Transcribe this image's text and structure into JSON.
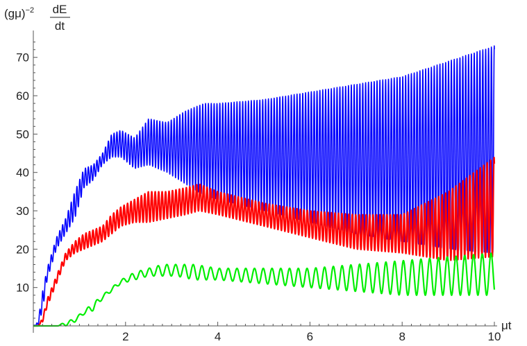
{
  "chart_data": {
    "type": "line",
    "xlabel": "μt",
    "ylabel": {
      "prefix": "(gμ)",
      "exponent": "−2",
      "numerator": "dE",
      "denominator": "dt"
    },
    "xlim": [
      0,
      10
    ],
    "ylim": [
      -2,
      75
    ],
    "x_ticks": [
      2,
      4,
      6,
      8,
      10
    ],
    "y_ticks": [
      10,
      20,
      30,
      40,
      50,
      60,
      70
    ],
    "grid": false,
    "legend": "none",
    "series": [
      {
        "color": "#0000ff",
        "osc_period": 0.062,
        "x": [
          0,
          0.1,
          0.2,
          0.3,
          0.5,
          0.7,
          0.9,
          1.1,
          1.3,
          1.5,
          1.7,
          1.9,
          2.2,
          2.5,
          2.9,
          3.3,
          3.7,
          4.0,
          5.0,
          6.0,
          7.0,
          8.0,
          9.0,
          10.0
        ],
        "upper": [
          0,
          1,
          9,
          15,
          23,
          28,
          35,
          41,
          42,
          45,
          50,
          51,
          49,
          54,
          53,
          56,
          58,
          58,
          59,
          61,
          63,
          65,
          69,
          73
        ],
        "lower": [
          0,
          0,
          4,
          12,
          20,
          24,
          28,
          36,
          38,
          42,
          44,
          44,
          41,
          42,
          40,
          37,
          34,
          33,
          30,
          27,
          24,
          22,
          20,
          19
        ]
      },
      {
        "color": "#ff0000",
        "osc_period": 0.075,
        "x": [
          0,
          0.1,
          0.2,
          0.3,
          0.5,
          0.7,
          0.9,
          1.1,
          1.3,
          1.5,
          1.7,
          1.9,
          2.2,
          2.5,
          2.9,
          3.3,
          3.6,
          4.0,
          5.0,
          6.0,
          7.0,
          8.0,
          9.0,
          10.0
        ],
        "upper": [
          0,
          0,
          2,
          7,
          13,
          19,
          22,
          24,
          25,
          26,
          29,
          31,
          33,
          35,
          35,
          36,
          37,
          35,
          32,
          30,
          29,
          29,
          35,
          44
        ],
        "lower": [
          0,
          0,
          1,
          5,
          11,
          17,
          19,
          20,
          21,
          22,
          24,
          26,
          27,
          27,
          28,
          29,
          30,
          29,
          26,
          23,
          20,
          19,
          17,
          18
        ]
      },
      {
        "color": "#00ee00",
        "osc_period": 0.19,
        "x": [
          0,
          0.3,
          0.5,
          0.7,
          0.9,
          1.1,
          1.3,
          1.5,
          1.7,
          1.9,
          2.2,
          2.5,
          2.8,
          3.1,
          3.5,
          4.0,
          5.0,
          6.0,
          7.0,
          8.0,
          9.0,
          10.0
        ],
        "upper": [
          0,
          0,
          0,
          1,
          2,
          4,
          6,
          8,
          10,
          12,
          14,
          15,
          16,
          16,
          16,
          15,
          15,
          15,
          16,
          17,
          18,
          19
        ],
        "lower": [
          0,
          0,
          0,
          0,
          1,
          3,
          4,
          7,
          9,
          11,
          12,
          13,
          13,
          13,
          12,
          12,
          11,
          10,
          9,
          8,
          8,
          8
        ]
      }
    ]
  }
}
